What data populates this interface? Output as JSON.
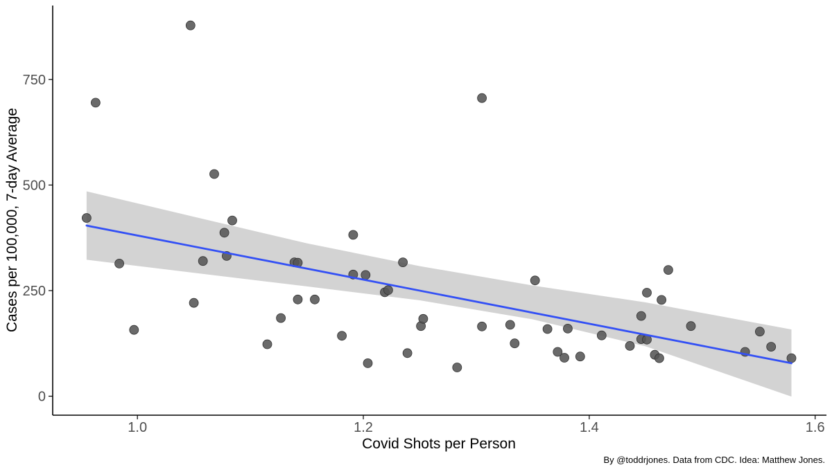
{
  "chart_data": {
    "type": "scatter",
    "title": "",
    "xlabel": "Covid Shots per Person",
    "ylabel": "Cases per 100,000, 7-day Average",
    "xlim": [
      0.925,
      1.61
    ],
    "ylim": [
      -45,
      925
    ],
    "xticks": [
      1.0,
      1.2,
      1.4,
      1.6
    ],
    "xtick_labels": [
      "1.0",
      "1.2",
      "1.4",
      "1.6"
    ],
    "yticks": [
      0,
      250,
      500,
      750
    ],
    "ytick_labels": [
      "0",
      "250",
      "500",
      "750"
    ],
    "grid": false,
    "legend": "none",
    "caption": "By @toddrjones. Data from CDC. Idea: Matthew Jones.",
    "colors": {
      "points": "#555555",
      "trend_line": "#3350f5",
      "confidence_band": "#d3d3d3",
      "axis": "#000000",
      "tick_label": "#4d4d4d"
    },
    "points": [
      {
        "x": 0.955,
        "y": 422
      },
      {
        "x": 0.963,
        "y": 695
      },
      {
        "x": 0.984,
        "y": 314
      },
      {
        "x": 0.997,
        "y": 157
      },
      {
        "x": 1.047,
        "y": 878
      },
      {
        "x": 1.05,
        "y": 221
      },
      {
        "x": 1.058,
        "y": 320
      },
      {
        "x": 1.068,
        "y": 526
      },
      {
        "x": 1.077,
        "y": 387
      },
      {
        "x": 1.079,
        "y": 332
      },
      {
        "x": 1.084,
        "y": 416
      },
      {
        "x": 1.115,
        "y": 123
      },
      {
        "x": 1.127,
        "y": 185
      },
      {
        "x": 1.139,
        "y": 317
      },
      {
        "x": 1.142,
        "y": 316
      },
      {
        "x": 1.142,
        "y": 229
      },
      {
        "x": 1.157,
        "y": 229
      },
      {
        "x": 1.181,
        "y": 143
      },
      {
        "x": 1.191,
        "y": 382
      },
      {
        "x": 1.191,
        "y": 288
      },
      {
        "x": 1.202,
        "y": 287
      },
      {
        "x": 1.204,
        "y": 78
      },
      {
        "x": 1.219,
        "y": 246
      },
      {
        "x": 1.222,
        "y": 251
      },
      {
        "x": 1.235,
        "y": 317
      },
      {
        "x": 1.239,
        "y": 102
      },
      {
        "x": 1.251,
        "y": 166
      },
      {
        "x": 1.253,
        "y": 183
      },
      {
        "x": 1.283,
        "y": 68
      },
      {
        "x": 1.305,
        "y": 706
      },
      {
        "x": 1.305,
        "y": 165
      },
      {
        "x": 1.33,
        "y": 169
      },
      {
        "x": 1.334,
        "y": 125
      },
      {
        "x": 1.352,
        "y": 274
      },
      {
        "x": 1.363,
        "y": 159
      },
      {
        "x": 1.372,
        "y": 105
      },
      {
        "x": 1.378,
        "y": 91
      },
      {
        "x": 1.381,
        "y": 160
      },
      {
        "x": 1.392,
        "y": 94
      },
      {
        "x": 1.411,
        "y": 144
      },
      {
        "x": 1.436,
        "y": 119
      },
      {
        "x": 1.446,
        "y": 190
      },
      {
        "x": 1.446,
        "y": 135
      },
      {
        "x": 1.451,
        "y": 134
      },
      {
        "x": 1.451,
        "y": 245
      },
      {
        "x": 1.458,
        "y": 98
      },
      {
        "x": 1.462,
        "y": 90
      },
      {
        "x": 1.464,
        "y": 228
      },
      {
        "x": 1.47,
        "y": 299
      },
      {
        "x": 1.49,
        "y": 166
      },
      {
        "x": 1.538,
        "y": 105
      },
      {
        "x": 1.551,
        "y": 153
      },
      {
        "x": 1.561,
        "y": 117
      },
      {
        "x": 1.579,
        "y": 90
      }
    ],
    "trend": {
      "type": "linear",
      "x": [
        0.955,
        1.579
      ],
      "y": [
        404,
        78
      ]
    },
    "confidence_band": {
      "x": [
        0.955,
        1.05,
        1.15,
        1.25,
        1.35,
        1.45,
        1.579
      ],
      "upper": [
        485,
        425,
        362,
        308,
        262,
        222,
        158
      ],
      "lower": [
        323,
        292,
        260,
        227,
        182,
        118,
        -1
      ]
    }
  }
}
